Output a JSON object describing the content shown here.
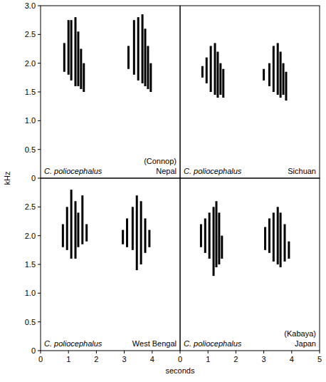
{
  "xlabel": "seconds",
  "ylabel": "kHz",
  "chart_data": [
    {
      "type": "spectrogram",
      "title": "C. poliocephalus",
      "subtitle": "Nepal",
      "annotations": [
        "(Connop)"
      ],
      "xlim": [
        0,
        5
      ],
      "ylim": [
        0,
        3
      ],
      "yticks": [
        0,
        0.5,
        {
          "value": 1,
          "label": "1.0"
        },
        1.5,
        {
          "value": 2,
          "label": "2.0"
        },
        2.5,
        {
          "value": 3,
          "label": "3.0"
        }
      ],
      "tick_labels": "y",
      "x": [
        0.85,
        1.0,
        1.1,
        1.25,
        1.35,
        1.45,
        1.55,
        3.15,
        3.35,
        3.5,
        3.65,
        3.75,
        3.85,
        3.95
      ],
      "values": [
        2.35,
        2.75,
        2.75,
        2.8,
        2.55,
        2.25,
        2.0,
        2.3,
        2.75,
        2.8,
        2.85,
        2.6,
        2.3,
        2.0
      ],
      "low": [
        1.85,
        1.8,
        1.7,
        1.6,
        1.6,
        1.55,
        1.5,
        1.9,
        1.8,
        1.7,
        1.65,
        1.6,
        1.55,
        1.5
      ],
      "color": "#000000"
    },
    {
      "type": "spectrogram",
      "title": "C. poliocephalus",
      "subtitle": "Sichuan",
      "xlim": [
        0,
        5
      ],
      "ylim": [
        0,
        3
      ],
      "tick_labels": false,
      "x": [
        0.8,
        0.95,
        1.1,
        1.25,
        1.35,
        1.45,
        1.55,
        3.0,
        3.2,
        3.35,
        3.5,
        3.6,
        3.7,
        3.8
      ],
      "values": [
        1.95,
        2.1,
        2.3,
        2.35,
        2.2,
        2.0,
        1.9,
        1.9,
        2.0,
        2.3,
        2.35,
        2.2,
        2.0,
        1.85
      ],
      "low": [
        1.75,
        1.65,
        1.5,
        1.45,
        1.4,
        1.45,
        1.4,
        1.7,
        1.6,
        1.5,
        1.45,
        1.4,
        1.45,
        1.35
      ],
      "color": "#000000"
    },
    {
      "type": "spectrogram",
      "title": "C. poliocephalus",
      "subtitle": "West Bengal",
      "xlim": [
        0,
        5
      ],
      "ylim": [
        0,
        3
      ],
      "xticks": [
        0,
        1,
        2,
        3,
        4
      ],
      "yticks": [
        0,
        0.5,
        {
          "value": 1,
          "label": "1.0"
        },
        1.5,
        {
          "value": 2,
          "label": "2.0"
        },
        2.5
      ],
      "tick_labels": true,
      "x": [
        0.8,
        0.95,
        1.1,
        1.25,
        1.35,
        1.5,
        1.65,
        2.95,
        3.1,
        3.3,
        3.45,
        3.6,
        3.75,
        3.9
      ],
      "values": [
        2.2,
        2.5,
        2.8,
        2.6,
        2.4,
        2.7,
        2.2,
        2.1,
        2.3,
        2.5,
        2.7,
        2.6,
        2.3,
        2.1
      ],
      "low": [
        1.8,
        1.75,
        1.6,
        1.6,
        1.8,
        1.85,
        1.9,
        1.85,
        1.8,
        1.75,
        1.4,
        1.5,
        1.7,
        1.8
      ],
      "color": "#000000"
    },
    {
      "type": "spectrogram",
      "title": "C. poliocephalus",
      "subtitle": "Japan",
      "annotations": [
        "(Kabaya)"
      ],
      "xlim": [
        0,
        5
      ],
      "ylim": [
        0,
        3
      ],
      "xticks": [
        0,
        1,
        2,
        3,
        4,
        5
      ],
      "tick_labels": "x",
      "x": [
        0.75,
        0.9,
        1.05,
        1.2,
        1.3,
        1.4,
        1.5,
        3.05,
        3.2,
        3.35,
        3.5,
        3.6,
        3.75,
        3.9
      ],
      "values": [
        2.2,
        2.3,
        2.4,
        2.5,
        2.6,
        2.4,
        2.0,
        2.15,
        2.3,
        2.4,
        2.5,
        2.4,
        2.2,
        1.9
      ],
      "low": [
        1.8,
        1.7,
        1.6,
        1.3,
        1.45,
        1.5,
        1.6,
        1.75,
        1.7,
        1.55,
        1.5,
        1.45,
        1.55,
        1.6
      ],
      "color": "#000000"
    }
  ]
}
